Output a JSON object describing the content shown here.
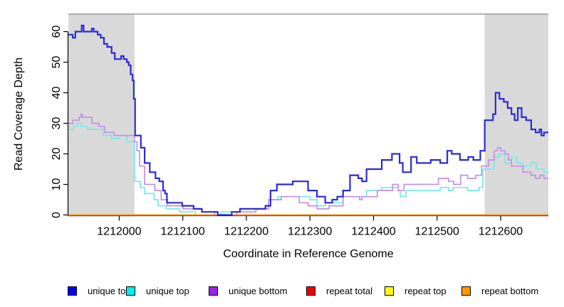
{
  "figure": {
    "title": "",
    "x_axis_label": "Coordinate in Reference Genome",
    "y_axis_label": "Read Coverage Depth"
  },
  "chart_data": {
    "type": "line",
    "subtype": "step-after",
    "title": "",
    "xlabel": "Coordinate in Reference Genome",
    "ylabel": "Read Coverage Depth",
    "xlim": [
      1211920,
      1212675
    ],
    "ylim": [
      0,
      64
    ],
    "x_ticks": [
      1212000,
      1212100,
      1212200,
      1212300,
      1212400,
      1212500,
      1212600
    ],
    "y_ticks": [
      0,
      10,
      20,
      30,
      40,
      50,
      60
    ],
    "grid": false,
    "legend_position": "bottom",
    "background_color": "#ffffff",
    "shaded_regions": [
      {
        "name": "left-gray-band",
        "x0": 1211920,
        "x1": 1212024,
        "color": "#d9d9d9"
      },
      {
        "name": "right-gray-band",
        "x0": 1212575,
        "x1": 1212675,
        "color": "#d9d9d9"
      }
    ],
    "series": [
      {
        "name": "repeat total",
        "line_color": "#dd0000",
        "legend_color": "#ee0000",
        "line_width": 1.5,
        "points": [
          [
            1211920,
            0
          ]
        ]
      },
      {
        "name": "repeat top",
        "line_color": "#ffff00",
        "legend_color": "#ffff00",
        "line_width": 1.5,
        "points": [
          [
            1211920,
            0
          ]
        ]
      },
      {
        "name": "unique top",
        "line_color": "#76e9e9",
        "legend_color": "#00eeee",
        "line_width": 1.7,
        "points": [
          [
            1211920,
            28
          ],
          [
            1211928,
            29
          ],
          [
            1211934,
            30
          ],
          [
            1211940,
            29
          ],
          [
            1211950,
            28
          ],
          [
            1211975,
            26
          ],
          [
            1211988,
            25
          ],
          [
            1212000,
            26
          ],
          [
            1212012,
            24
          ],
          [
            1212024,
            11
          ],
          [
            1212033,
            9
          ],
          [
            1212040,
            7
          ],
          [
            1212055,
            5
          ],
          [
            1212061,
            3
          ],
          [
            1212074,
            2
          ],
          [
            1212095,
            1
          ],
          [
            1212120,
            0
          ],
          [
            1212160,
            1
          ],
          [
            1212215,
            2
          ],
          [
            1212235,
            5
          ],
          [
            1212250,
            6
          ],
          [
            1212300,
            5
          ],
          [
            1212311,
            3
          ],
          [
            1212324,
            4
          ],
          [
            1212352,
            6
          ],
          [
            1212389,
            8
          ],
          [
            1212413,
            9
          ],
          [
            1212439,
            8
          ],
          [
            1212442,
            6
          ],
          [
            1212451,
            8
          ],
          [
            1212505,
            9
          ],
          [
            1212518,
            8
          ],
          [
            1212525,
            9
          ],
          [
            1212548,
            8
          ],
          [
            1212566,
            9
          ],
          [
            1212572,
            15
          ],
          [
            1212590,
            19
          ],
          [
            1212598,
            20
          ],
          [
            1212607,
            17
          ],
          [
            1212617,
            19
          ],
          [
            1212625,
            17
          ],
          [
            1212635,
            16
          ],
          [
            1212648,
            17
          ],
          [
            1212656,
            15
          ],
          [
            1212668,
            14
          ]
        ]
      },
      {
        "name": "unique bottom",
        "line_color": "#c491e2",
        "legend_color": "#a020f0",
        "line_width": 1.7,
        "points": [
          [
            1211920,
            30
          ],
          [
            1211927,
            31
          ],
          [
            1211937,
            32
          ],
          [
            1211940,
            33
          ],
          [
            1211942,
            32
          ],
          [
            1211957,
            30
          ],
          [
            1211968,
            29
          ],
          [
            1211977,
            27
          ],
          [
            1211992,
            26
          ],
          [
            1212024,
            24
          ],
          [
            1212028,
            21
          ],
          [
            1212032,
            16
          ],
          [
            1212040,
            10
          ],
          [
            1212056,
            8
          ],
          [
            1212066,
            5
          ],
          [
            1212076,
            3
          ],
          [
            1212100,
            2
          ],
          [
            1212130,
            1
          ],
          [
            1212150,
            0
          ],
          [
            1212185,
            1
          ],
          [
            1212215,
            2
          ],
          [
            1212235,
            5
          ],
          [
            1212255,
            6
          ],
          [
            1212283,
            4
          ],
          [
            1212297,
            3
          ],
          [
            1212311,
            2
          ],
          [
            1212330,
            3
          ],
          [
            1212352,
            6
          ],
          [
            1212378,
            5
          ],
          [
            1212382,
            6
          ],
          [
            1212406,
            8
          ],
          [
            1212430,
            10
          ],
          [
            1212439,
            8
          ],
          [
            1212448,
            10
          ],
          [
            1212502,
            12
          ],
          [
            1212518,
            11
          ],
          [
            1212526,
            10
          ],
          [
            1212537,
            13
          ],
          [
            1212548,
            12
          ],
          [
            1212561,
            13
          ],
          [
            1212570,
            16
          ],
          [
            1212581,
            18
          ],
          [
            1212590,
            21
          ],
          [
            1212595,
            22
          ],
          [
            1212600,
            21
          ],
          [
            1212607,
            20
          ],
          [
            1212612,
            18
          ],
          [
            1212617,
            16
          ],
          [
            1212635,
            14
          ],
          [
            1212648,
            13
          ],
          [
            1212655,
            12
          ],
          [
            1212662,
            13
          ],
          [
            1212668,
            12
          ]
        ]
      },
      {
        "name": "repeat bottom",
        "line_color": "#ff9414",
        "legend_color": "#ff9900",
        "line_width": 2,
        "points": [
          [
            1211920,
            0
          ]
        ]
      },
      {
        "name": "unique total",
        "line_color": "#2b2bd6",
        "legend_color": "#0000ee",
        "line_width": 2.2,
        "points": [
          [
            1211920,
            59
          ],
          [
            1211927,
            58
          ],
          [
            1211931,
            60
          ],
          [
            1211941,
            62
          ],
          [
            1211944,
            60
          ],
          [
            1211957,
            61
          ],
          [
            1211960,
            60
          ],
          [
            1211966,
            59
          ],
          [
            1211971,
            58
          ],
          [
            1211976,
            56
          ],
          [
            1211981,
            55
          ],
          [
            1211988,
            53
          ],
          [
            1211993,
            51
          ],
          [
            1212003,
            52
          ],
          [
            1212007,
            51
          ],
          [
            1212012,
            50
          ],
          [
            1212015,
            49
          ],
          [
            1212018,
            46
          ],
          [
            1212021,
            44
          ],
          [
            1212023,
            38
          ],
          [
            1212025,
            26
          ],
          [
            1212034,
            22
          ],
          [
            1212040,
            17
          ],
          [
            1212048,
            14
          ],
          [
            1212057,
            12
          ],
          [
            1212063,
            11
          ],
          [
            1212069,
            8
          ],
          [
            1212072,
            7
          ],
          [
            1212075,
            4
          ],
          [
            1212099,
            3
          ],
          [
            1212117,
            2
          ],
          [
            1212130,
            1
          ],
          [
            1212155,
            0
          ],
          [
            1212177,
            1
          ],
          [
            1212190,
            2
          ],
          [
            1212230,
            3
          ],
          [
            1212238,
            8
          ],
          [
            1212248,
            10
          ],
          [
            1212273,
            11
          ],
          [
            1212297,
            8
          ],
          [
            1212311,
            6
          ],
          [
            1212324,
            4
          ],
          [
            1212335,
            5
          ],
          [
            1212343,
            6
          ],
          [
            1212352,
            8
          ],
          [
            1212363,
            13
          ],
          [
            1212376,
            12
          ],
          [
            1212382,
            11
          ],
          [
            1212389,
            15
          ],
          [
            1212413,
            18
          ],
          [
            1212429,
            20
          ],
          [
            1212441,
            17
          ],
          [
            1212446,
            14
          ],
          [
            1212459,
            19
          ],
          [
            1212468,
            17
          ],
          [
            1212490,
            18
          ],
          [
            1212505,
            17
          ],
          [
            1212516,
            21
          ],
          [
            1212523,
            20
          ],
          [
            1212536,
            18
          ],
          [
            1212549,
            19
          ],
          [
            1212557,
            18
          ],
          [
            1212568,
            21
          ],
          [
            1212575,
            31
          ],
          [
            1212588,
            33
          ],
          [
            1212592,
            40
          ],
          [
            1212598,
            38
          ],
          [
            1212605,
            37
          ],
          [
            1212611,
            35
          ],
          [
            1212617,
            33
          ],
          [
            1212622,
            31
          ],
          [
            1212627,
            35
          ],
          [
            1212633,
            32
          ],
          [
            1212640,
            31
          ],
          [
            1212648,
            28
          ],
          [
            1212655,
            27
          ],
          [
            1212661,
            28
          ],
          [
            1212664,
            26
          ],
          [
            1212668,
            27
          ]
        ]
      }
    ]
  },
  "legend": {
    "order": [
      "unique total",
      "unique top",
      "unique bottom",
      "repeat total",
      "repeat top",
      "repeat bottom"
    ]
  }
}
